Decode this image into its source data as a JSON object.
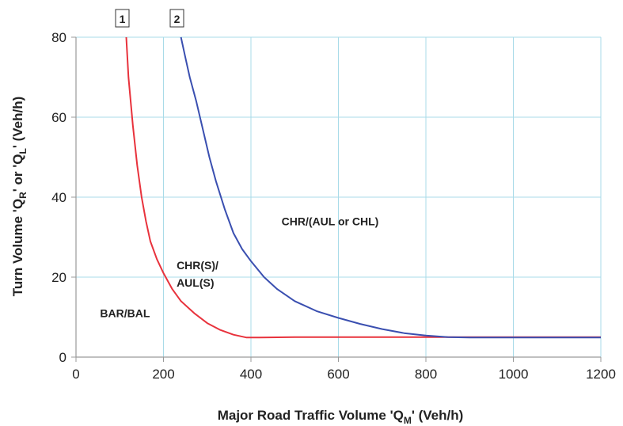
{
  "chart_data": {
    "type": "line",
    "xlabel": {
      "main": "Major Road Traffic Volume 'Q",
      "sub": "M",
      "end": "' (Veh/h)"
    },
    "ylabel": {
      "p1": "Turn Volume 'Q",
      "s1": "R",
      "p2": "' or 'Q",
      "s2": "L",
      "p3": "' (Veh/h)"
    },
    "xlim": [
      0,
      1200
    ],
    "ylim": [
      0,
      80
    ],
    "xticks": [
      "0",
      "200",
      "400",
      "600",
      "800",
      "1000",
      "1200"
    ],
    "yticks": [
      "0",
      "20",
      "40",
      "60",
      "80"
    ],
    "grid": true,
    "series": [
      {
        "name": "1",
        "color": "#e8323c",
        "points": [
          [
            115,
            80
          ],
          [
            120,
            70
          ],
          [
            130,
            58
          ],
          [
            140,
            48
          ],
          [
            150,
            40
          ],
          [
            160,
            34
          ],
          [
            170,
            29
          ],
          [
            185,
            24.5
          ],
          [
            200,
            21
          ],
          [
            220,
            17
          ],
          [
            240,
            14
          ],
          [
            270,
            11
          ],
          [
            300,
            8.5
          ],
          [
            330,
            6.8
          ],
          [
            360,
            5.6
          ],
          [
            390,
            4.9
          ],
          [
            420,
            4.9
          ],
          [
            500,
            5
          ],
          [
            600,
            5
          ],
          [
            800,
            5
          ],
          [
            1000,
            5
          ],
          [
            1200,
            5
          ]
        ]
      },
      {
        "name": "2",
        "color": "#3a4fb0",
        "points": [
          [
            240,
            80
          ],
          [
            250,
            75
          ],
          [
            260,
            70
          ],
          [
            275,
            64
          ],
          [
            290,
            57
          ],
          [
            305,
            50
          ],
          [
            320,
            44
          ],
          [
            340,
            37
          ],
          [
            360,
            31
          ],
          [
            380,
            27
          ],
          [
            400,
            24
          ],
          [
            430,
            20
          ],
          [
            460,
            17
          ],
          [
            500,
            14
          ],
          [
            550,
            11.5
          ],
          [
            600,
            9.8
          ],
          [
            650,
            8.3
          ],
          [
            700,
            7
          ],
          [
            750,
            6
          ],
          [
            800,
            5.4
          ],
          [
            850,
            5
          ],
          [
            900,
            4.9
          ],
          [
            1000,
            4.9
          ],
          [
            1100,
            4.9
          ],
          [
            1200,
            4.9
          ]
        ]
      }
    ],
    "annotations": [
      {
        "lines": [
          "BAR/BAL"
        ],
        "x": 55,
        "y": 10
      },
      {
        "lines": [
          "CHR(S)/",
          "AUL(S)"
        ],
        "x": 230,
        "y": 22
      },
      {
        "lines": [
          "CHR/(AUL or CHL)"
        ],
        "x": 470,
        "y": 33
      }
    ]
  }
}
